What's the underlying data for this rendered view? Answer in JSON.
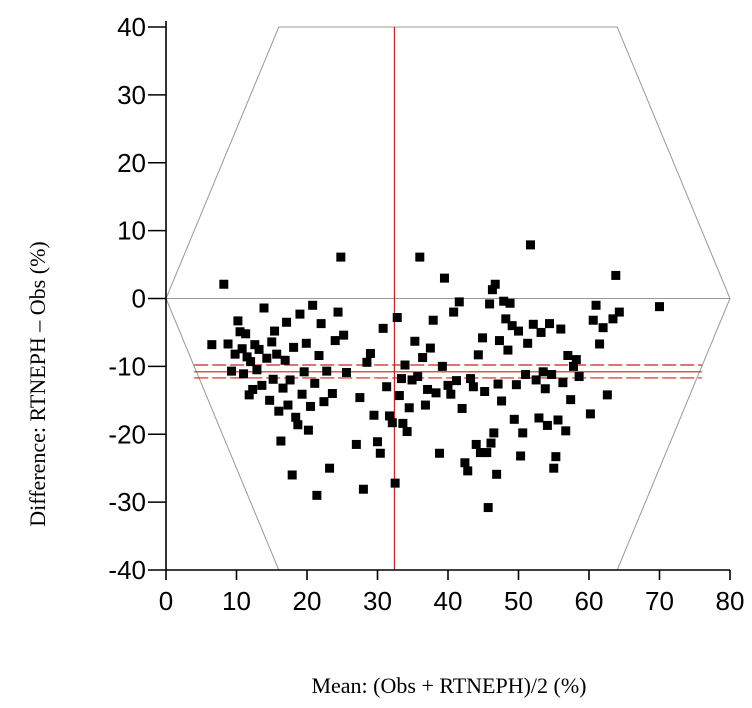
{
  "chart_data": {
    "type": "scatter",
    "title": "",
    "xlabel": "Mean: (Obs + RTNEPH)/2 (%)",
    "ylabel": "Difference: RTNEPH – Obs (%)",
    "xlim": [
      0,
      80
    ],
    "ylim": [
      -40,
      40
    ],
    "xticks": [
      0,
      10,
      20,
      30,
      40,
      50,
      60,
      70,
      80
    ],
    "yticks": [
      -40,
      -30,
      -20,
      -10,
      0,
      10,
      20,
      30,
      40
    ],
    "xtick_labels": [
      "0",
      "10",
      "20",
      "30",
      "40",
      "50",
      "60",
      "70",
      "80"
    ],
    "ytick_labels": [
      "-40",
      "-30",
      "-20",
      "-10",
      "0",
      "10",
      "20",
      "30",
      "40"
    ],
    "grid": false,
    "colors": {
      "points": "#000000",
      "reference_lines": "#cc2222",
      "guide_lines": "#999999"
    },
    "reference_lines": {
      "mean_x": 32.4,
      "zero_y": 0,
      "mean_difference": -10.8,
      "upper_confidence": -9.8,
      "lower_confidence": -11.7,
      "x_range": [
        4,
        76
      ]
    },
    "envelope": [
      [
        0,
        0
      ],
      [
        16,
        -40
      ],
      [
        64,
        -40
      ],
      [
        80,
        0
      ],
      [
        64,
        40
      ],
      [
        16,
        40
      ]
    ],
    "points": [
      [
        6.5,
        -6.8
      ],
      [
        8.2,
        2.1
      ],
      [
        8.8,
        -6.7
      ],
      [
        9.3,
        -10.7
      ],
      [
        9.8,
        -8.2
      ],
      [
        10.2,
        -3.3
      ],
      [
        10.5,
        -4.9
      ],
      [
        10.8,
        -7.4
      ],
      [
        11.0,
        -11.1
      ],
      [
        11.3,
        -5.2
      ],
      [
        11.5,
        -8.6
      ],
      [
        11.8,
        -14.2
      ],
      [
        12.0,
        -9.3
      ],
      [
        12.3,
        -13.4
      ],
      [
        12.6,
        -6.8
      ],
      [
        12.9,
        -10.5
      ],
      [
        13.2,
        -7.5
      ],
      [
        13.6,
        -12.8
      ],
      [
        13.9,
        -1.4
      ],
      [
        14.3,
        -8.8
      ],
      [
        14.7,
        -15.0
      ],
      [
        15.0,
        -6.4
      ],
      [
        15.2,
        -11.9
      ],
      [
        15.4,
        -4.8
      ],
      [
        15.7,
        -8.2
      ],
      [
        16.0,
        -16.6
      ],
      [
        16.3,
        -21.0
      ],
      [
        16.6,
        -13.2
      ],
      [
        16.9,
        -9.1
      ],
      [
        17.1,
        -3.5
      ],
      [
        17.3,
        -15.7
      ],
      [
        17.6,
        -12.0
      ],
      [
        17.9,
        -26.0
      ],
      [
        18.1,
        -7.2
      ],
      [
        18.4,
        -17.5
      ],
      [
        18.7,
        -18.6
      ],
      [
        19.0,
        -2.3
      ],
      [
        19.3,
        -14.1
      ],
      [
        19.6,
        -10.8
      ],
      [
        19.9,
        -6.6
      ],
      [
        20.2,
        -19.4
      ],
      [
        20.5,
        -15.9
      ],
      [
        20.8,
        -1.0
      ],
      [
        21.1,
        -12.5
      ],
      [
        21.4,
        -29.0
      ],
      [
        21.7,
        -8.4
      ],
      [
        22.0,
        -3.7
      ],
      [
        22.4,
        -15.2
      ],
      [
        22.8,
        -10.7
      ],
      [
        23.2,
        -25.0
      ],
      [
        23.6,
        -14.0
      ],
      [
        24.0,
        -6.2
      ],
      [
        24.4,
        -2.0
      ],
      [
        24.8,
        6.1
      ],
      [
        25.2,
        -5.4
      ],
      [
        25.6,
        -10.9
      ],
      [
        27.0,
        -21.5
      ],
      [
        27.5,
        -14.6
      ],
      [
        28.0,
        -28.1
      ],
      [
        28.5,
        -9.4
      ],
      [
        29.0,
        -8.1
      ],
      [
        29.5,
        -17.2
      ],
      [
        30.0,
        -21.1
      ],
      [
        30.4,
        -22.8
      ],
      [
        30.8,
        -4.4
      ],
      [
        31.3,
        -13.0
      ],
      [
        31.7,
        -17.3
      ],
      [
        32.1,
        -18.3
      ],
      [
        32.5,
        -27.2
      ],
      [
        32.8,
        -2.8
      ],
      [
        33.1,
        -14.3
      ],
      [
        33.4,
        -11.8
      ],
      [
        33.6,
        -18.4
      ],
      [
        33.9,
        -9.8
      ],
      [
        34.2,
        -19.6
      ],
      [
        34.5,
        -16.1
      ],
      [
        34.9,
        -12.0
      ],
      [
        35.3,
        -6.3
      ],
      [
        35.7,
        -11.5
      ],
      [
        36.0,
        6.1
      ],
      [
        36.4,
        -8.7
      ],
      [
        36.8,
        -15.7
      ],
      [
        37.1,
        -13.4
      ],
      [
        37.5,
        -7.3
      ],
      [
        37.9,
        -3.2
      ],
      [
        38.3,
        -13.9
      ],
      [
        38.8,
        -22.8
      ],
      [
        39.2,
        -10.0
      ],
      [
        39.5,
        3.0
      ],
      [
        40.0,
        -12.8
      ],
      [
        40.4,
        -14.1
      ],
      [
        40.8,
        -2.0
      ],
      [
        41.2,
        -12.1
      ],
      [
        41.6,
        -0.5
      ],
      [
        42.0,
        -16.2
      ],
      [
        42.4,
        -24.2
      ],
      [
        42.8,
        -25.4
      ],
      [
        43.2,
        -11.8
      ],
      [
        43.6,
        -13.0
      ],
      [
        44.0,
        -21.5
      ],
      [
        44.3,
        -8.3
      ],
      [
        44.6,
        -22.7
      ],
      [
        44.9,
        -5.8
      ],
      [
        45.2,
        -13.7
      ],
      [
        45.5,
        -22.7
      ],
      [
        45.7,
        -30.8
      ],
      [
        45.9,
        -0.8
      ],
      [
        46.1,
        -21.3
      ],
      [
        46.3,
        1.3
      ],
      [
        46.5,
        -19.8
      ],
      [
        46.7,
        2.1
      ],
      [
        46.9,
        -25.9
      ],
      [
        47.1,
        -12.6
      ],
      [
        47.3,
        -6.2
      ],
      [
        47.6,
        -15.1
      ],
      [
        47.9,
        -0.4
      ],
      [
        48.2,
        -3.0
      ],
      [
        48.5,
        -7.6
      ],
      [
        48.8,
        -0.7
      ],
      [
        49.1,
        -4.0
      ],
      [
        49.4,
        -17.8
      ],
      [
        49.7,
        -12.7
      ],
      [
        50.0,
        -4.8
      ],
      [
        50.3,
        -23.2
      ],
      [
        50.6,
        -19.8
      ],
      [
        51.0,
        -11.2
      ],
      [
        51.3,
        -6.6
      ],
      [
        51.7,
        7.9
      ],
      [
        52.1,
        -3.8
      ],
      [
        52.5,
        -12.0
      ],
      [
        52.9,
        -17.6
      ],
      [
        53.2,
        -5.0
      ],
      [
        53.5,
        -10.8
      ],
      [
        53.8,
        -13.3
      ],
      [
        54.1,
        -18.7
      ],
      [
        54.4,
        -3.7
      ],
      [
        54.7,
        -11.2
      ],
      [
        55.0,
        -25.0
      ],
      [
        55.3,
        -23.3
      ],
      [
        55.6,
        -17.9
      ],
      [
        56.0,
        -4.5
      ],
      [
        56.3,
        -12.4
      ],
      [
        56.7,
        -19.5
      ],
      [
        57.0,
        -8.4
      ],
      [
        57.4,
        -14.9
      ],
      [
        57.8,
        -10.0
      ],
      [
        58.2,
        -9.0
      ],
      [
        58.6,
        -11.5
      ],
      [
        60.2,
        -17.0
      ],
      [
        60.6,
        -3.2
      ],
      [
        61.0,
        -1.0
      ],
      [
        61.5,
        -6.7
      ],
      [
        62.0,
        -4.3
      ],
      [
        62.6,
        -14.2
      ],
      [
        63.4,
        -3.0
      ],
      [
        63.8,
        3.4
      ],
      [
        64.3,
        -2.0
      ],
      [
        70.0,
        -1.2
      ]
    ]
  }
}
